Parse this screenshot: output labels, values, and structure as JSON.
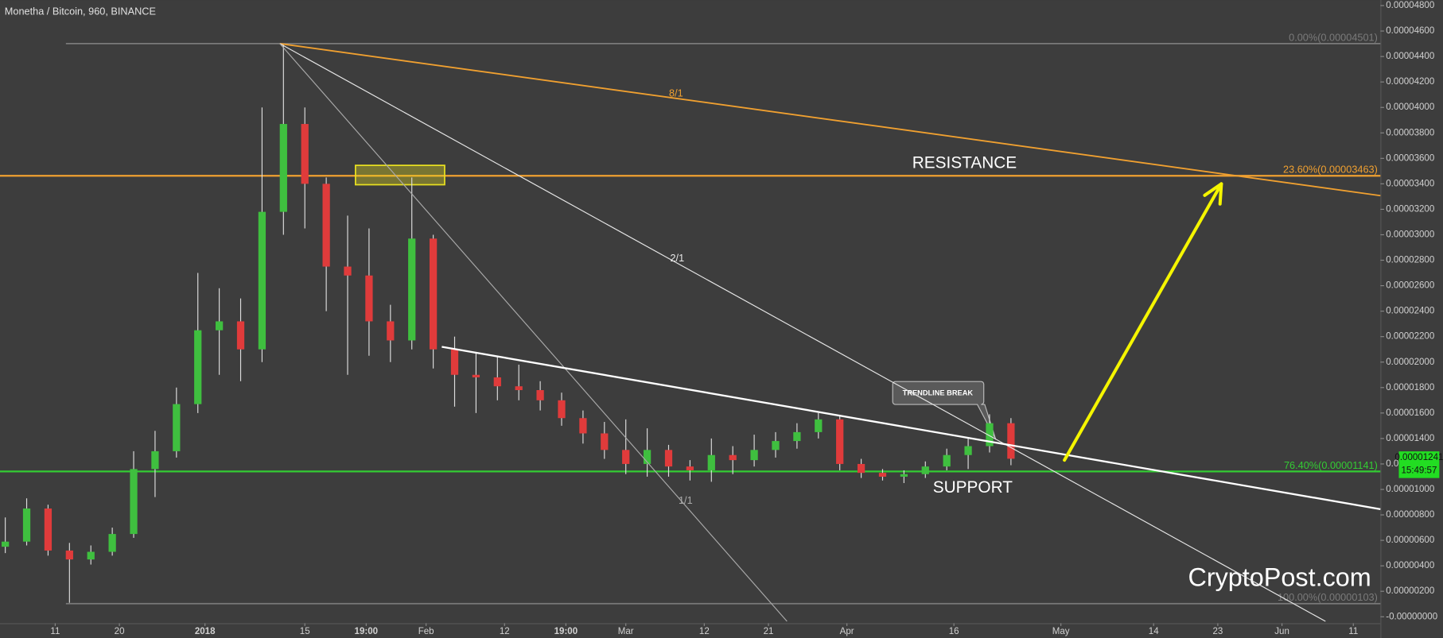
{
  "chart_data": {
    "type": "candlestick",
    "title": "Monetha / Bitcoin, 960, BINANCE",
    "xlim": [
      -7.74,
      185.8
    ],
    "ylim": [
      -5.1e-07,
      4.8433e-05
    ],
    "xticks": [
      {
        "value": 0,
        "label": "11"
      },
      {
        "value": 9,
        "label": "20"
      },
      {
        "value": 21,
        "label": "2018"
      },
      {
        "value": 35,
        "label": "15"
      },
      {
        "value": 43.6,
        "label": "19:00"
      },
      {
        "value": 52,
        "label": "Feb"
      },
      {
        "value": 63,
        "label": "12"
      },
      {
        "value": 71.6,
        "label": "19:00"
      },
      {
        "value": 80,
        "label": "Mar"
      },
      {
        "value": 91,
        "label": "12"
      },
      {
        "value": 100,
        "label": "21"
      },
      {
        "value": 111,
        "label": "Apr"
      },
      {
        "value": 126,
        "label": "16"
      },
      {
        "value": 141,
        "label": "May"
      },
      {
        "value": 154,
        "label": "14"
      },
      {
        "value": 163,
        "label": "23"
      },
      {
        "value": 172,
        "label": "Jun"
      },
      {
        "value": 182,
        "label": "11"
      }
    ],
    "yticks": [
      {
        "value": 4.8e-05,
        "label": "0.00004800"
      },
      {
        "value": 4.6e-05,
        "label": "0.00004600"
      },
      {
        "value": 4.4e-05,
        "label": "0.00004400"
      },
      {
        "value": 4.2e-05,
        "label": "0.00004200"
      },
      {
        "value": 4e-05,
        "label": "0.00004000"
      },
      {
        "value": 3.8e-05,
        "label": "0.00003800"
      },
      {
        "value": 3.6e-05,
        "label": "0.00003600"
      },
      {
        "value": 3.4e-05,
        "label": "0.00003400"
      },
      {
        "value": 3.2e-05,
        "label": "0.00003200"
      },
      {
        "value": 3e-05,
        "label": "0.00003000"
      },
      {
        "value": 2.8e-05,
        "label": "0.00002800"
      },
      {
        "value": 2.6e-05,
        "label": "0.00002600"
      },
      {
        "value": 2.4e-05,
        "label": "0.00002400"
      },
      {
        "value": 2.2e-05,
        "label": "0.00002200"
      },
      {
        "value": 2e-05,
        "label": "0.00002000"
      },
      {
        "value": 1.8e-05,
        "label": "0.00001800"
      },
      {
        "value": 1.6e-05,
        "label": "0.00001600"
      },
      {
        "value": 1.4e-05,
        "label": "0.00001400"
      },
      {
        "value": 1.2e-05,
        "label": "0.00001200"
      },
      {
        "value": 1e-05,
        "label": "0.00001000"
      },
      {
        "value": 8e-06,
        "label": "0.00000800"
      },
      {
        "value": 6e-06,
        "label": "0.00000600"
      },
      {
        "value": 4e-06,
        "label": "0.00000400"
      },
      {
        "value": 2e-06,
        "label": "0.00000200"
      },
      {
        "value": 0,
        "label": "-0.00000000"
      }
    ],
    "grid": false,
    "up_color": "#3fbf3f",
    "down_color": "#e03b3b",
    "x": [
      -7,
      -4,
      -1,
      2,
      5,
      8,
      11,
      14,
      17,
      20,
      23,
      26,
      29,
      32,
      35,
      38,
      41,
      44,
      47,
      50,
      53,
      56,
      59,
      62,
      65,
      68,
      71,
      74,
      77,
      80,
      83,
      86,
      89,
      92,
      95,
      98,
      101,
      104,
      107,
      110,
      113,
      116,
      119,
      122,
      125,
      128,
      131,
      134
    ],
    "open": [
      5.5e-06,
      5.9e-06,
      8.5e-06,
      5.2e-06,
      4.5e-06,
      5.1e-06,
      6.5e-06,
      1.16e-05,
      1.3e-05,
      1.67e-05,
      2.25e-05,
      2.32e-05,
      2.1e-05,
      3.18e-05,
      3.87e-05,
      3.4e-05,
      2.75e-05,
      2.68e-05,
      2.32e-05,
      2.17e-05,
      2.97e-05,
      2.1e-05,
      1.9e-05,
      1.88e-05,
      1.81e-05,
      1.78e-05,
      1.7e-05,
      1.56e-05,
      1.44e-05,
      1.31e-05,
      1.2e-05,
      1.31e-05,
      1.18e-05,
      1.15e-05,
      1.27e-05,
      1.23e-05,
      1.31e-05,
      1.38e-05,
      1.45e-05,
      1.55e-05,
      1.2e-05,
      1.13e-05,
      1.1e-05,
      1.12e-05,
      1.18e-05,
      1.27e-05,
      1.34e-05,
      1.52e-05
    ],
    "high": [
      7.8e-06,
      9.3e-06,
      8.8e-06,
      5.8e-06,
      5.6e-06,
      7e-06,
      1.3e-05,
      1.46e-05,
      1.8e-05,
      2.7e-05,
      2.58e-05,
      2.5e-05,
      4e-05,
      4.5e-05,
      4e-05,
      3.45e-05,
      3.15e-05,
      3.05e-05,
      2.45e-05,
      3.45e-05,
      3e-05,
      2.2e-05,
      2.08e-05,
      2.05e-05,
      1.98e-05,
      1.85e-05,
      1.76e-05,
      1.62e-05,
      1.53e-05,
      1.55e-05,
      1.48e-05,
      1.35e-05,
      1.23e-05,
      1.4e-05,
      1.34e-05,
      1.43e-05,
      1.45e-05,
      1.52e-05,
      1.6e-05,
      1.58e-05,
      1.24e-05,
      1.16e-05,
      1.15e-05,
      1.22e-05,
      1.32e-05,
      1.4e-05,
      1.59e-05,
      1.56e-05
    ],
    "low": [
      5e-06,
      5.6e-06,
      4.8e-06,
      1.1e-06,
      4.1e-06,
      4.8e-06,
      6.2e-06,
      9.4e-06,
      1.25e-05,
      1.6e-05,
      1.9e-05,
      1.85e-05,
      2e-05,
      3e-05,
      3.05e-05,
      2.4e-05,
      1.9e-05,
      2.05e-05,
      2e-05,
      2.1e-05,
      1.95e-05,
      1.65e-05,
      1.6e-05,
      1.7e-05,
      1.7e-05,
      1.62e-05,
      1.5e-05,
      1.36e-05,
      1.24e-05,
      1.12e-05,
      1.1e-05,
      1.1e-05,
      1.07e-05,
      1.06e-05,
      1.12e-05,
      1.18e-05,
      1.25e-05,
      1.32e-05,
      1.4e-05,
      1.15e-05,
      1.09e-05,
      1.07e-05,
      1.05e-05,
      1.09e-05,
      1.15e-05,
      1.16e-05,
      1.29e-05,
      1.19e-05
    ],
    "close": [
      5.9e-06,
      8.5e-06,
      5.2e-06,
      4.5e-06,
      5.1e-06,
      6.5e-06,
      1.16e-05,
      1.3e-05,
      1.67e-05,
      2.25e-05,
      2.32e-05,
      2.1e-05,
      3.18e-05,
      3.87e-05,
      3.4e-05,
      2.75e-05,
      2.68e-05,
      2.32e-05,
      2.17e-05,
      2.97e-05,
      2.1e-05,
      1.9e-05,
      1.88e-05,
      1.81e-05,
      1.78e-05,
      1.7e-05,
      1.56e-05,
      1.44e-05,
      1.31e-05,
      1.2e-05,
      1.31e-05,
      1.18e-05,
      1.15e-05,
      1.27e-05,
      1.23e-05,
      1.31e-05,
      1.38e-05,
      1.45e-05,
      1.55e-05,
      1.2e-05,
      1.13e-05,
      1.1e-05,
      1.12e-05,
      1.18e-05,
      1.27e-05,
      1.34e-05,
      1.52e-05,
      1.241e-05
    ],
    "fib_levels": [
      {
        "label": "0.00%(0.00004501)",
        "value": 4.501e-05,
        "color": "#7a7a7a",
        "x0": 1.5
      },
      {
        "label": "23.60%(0.00003463)",
        "value": 3.463e-05,
        "color": "#f0a030",
        "x0": -7.74
      },
      {
        "label": "76.40%(0.00001141)",
        "value": 1.141e-05,
        "color": "#33cc33",
        "x0": -7.74
      },
      {
        "label": "100.00%(0.00000103)",
        "value": 1.03e-06,
        "color": "#7a7a7a",
        "x0": 1.5
      }
    ],
    "trendlines": [
      {
        "label": "8/1",
        "color": "#f0a030",
        "x": [
          31.5,
          185.8
        ],
        "y": [
          4.501e-05,
          3.307e-05
        ]
      },
      {
        "label": "2/1",
        "color": "#e8e8e8",
        "x": [
          31.5,
          178.1
        ],
        "y": [
          4.501e-05,
          -3.6e-07
        ]
      },
      {
        "label": "1/1",
        "color": "#aaaaaa",
        "x": [
          31.5,
          102.6
        ],
        "y": [
          4.501e-05,
          -3.6e-07
        ]
      },
      {
        "color": "#ffffff",
        "x": [
          54.2,
          185.8
        ],
        "y": [
          2.12e-05,
          8.45e-06
        ]
      }
    ],
    "arrow": {
      "color": "#f5f500",
      "x": [
        141.5,
        163.5
      ],
      "y": [
        1.23e-05,
        3.4e-05
      ]
    },
    "zone": {
      "color": "#e8e020",
      "x": [
        42.1,
        54.6
      ],
      "y": [
        3.545e-05,
        3.393e-05
      ]
    },
    "last_price": {
      "value": 1.241e-05,
      "label": "0.00001241"
    },
    "countdown": "15:49:57",
    "annotations": {
      "resistance": "RESISTANCE",
      "support": "SUPPORT",
      "breakout": "TRENDLINE BREAK",
      "watermark": "CryptoPost.com"
    }
  }
}
